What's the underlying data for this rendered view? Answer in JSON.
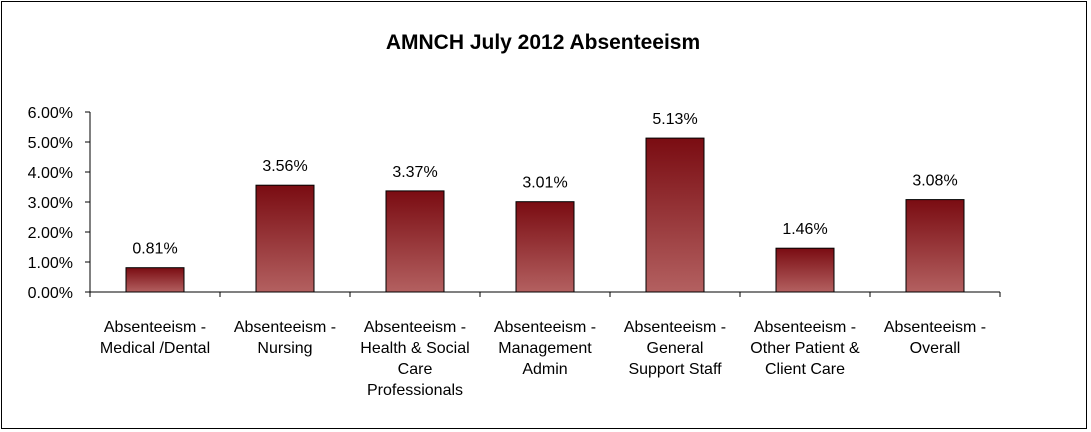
{
  "chart_data": {
    "type": "bar",
    "title": "AMNCH July 2012 Absenteeism",
    "categories": [
      [
        "Absenteeism -",
        "Medical /Dental"
      ],
      [
        "Absenteeism -",
        "Nursing"
      ],
      [
        "Absenteeism -",
        "Health & Social",
        "Care",
        "Professionals"
      ],
      [
        "Absenteeism -",
        "Management",
        "Admin"
      ],
      [
        "Absenteeism -",
        "General",
        "Support Staff"
      ],
      [
        "Absenteeism -",
        "Other Patient &",
        "Client Care"
      ],
      [
        "Absenteeism -",
        "Overall"
      ]
    ],
    "values": [
      0.81,
      3.56,
      3.37,
      3.01,
      5.13,
      1.46,
      3.08
    ],
    "data_labels": [
      "0.81%",
      "3.56%",
      "3.37%",
      "3.01%",
      "5.13%",
      "1.46%",
      "3.08%"
    ],
    "y_ticks": [
      "0.00%",
      "1.00%",
      "2.00%",
      "3.00%",
      "4.00%",
      "5.00%",
      "6.00%"
    ],
    "ylim": [
      0,
      6
    ],
    "grid": false,
    "legend": "none",
    "bar_color_top": "#7a0c12",
    "bar_color_bottom": "#b36060"
  }
}
